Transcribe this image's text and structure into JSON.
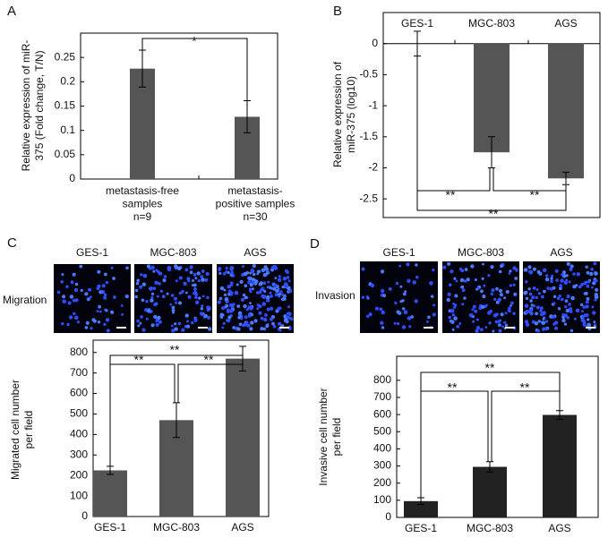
{
  "chart_data": [
    {
      "type": "bar",
      "label": "A",
      "ylabel": [
        "Relative expression of miR-",
        "375 (Fold change, T/N)"
      ],
      "categories": [
        [
          "metastasis-free",
          "samples",
          "n=9"
        ],
        [
          "metastasis-",
          "positive samples",
          "n=30"
        ]
      ],
      "values": [
        0.227,
        0.128
      ],
      "errors": [
        0.038,
        0.033
      ],
      "color": "#555555",
      "ylim": [
        0,
        0.3
      ],
      "yticks": [
        0,
        0.05,
        0.1,
        0.15,
        0.2,
        0.25
      ],
      "annotations": [
        "*"
      ]
    },
    {
      "type": "bar",
      "label": "B",
      "ylabel": [
        "Relative expression of",
        "miR-375 (log10)"
      ],
      "categories": [
        "GES-1",
        "MGC-803",
        "AGS"
      ],
      "values": [
        0,
        -1.75,
        -2.17
      ],
      "errors": [
        0.2,
        0.25,
        0.1
      ],
      "color": "#555555",
      "ylim": [
        -2.8,
        0.5
      ],
      "yticks": [
        0,
        -0.5,
        -1,
        -1.5,
        -2,
        -2.5
      ],
      "annotations": [
        "**",
        "**",
        "**"
      ]
    },
    {
      "type": "bar",
      "label": "C",
      "image_row_label": "Migration",
      "image_labels": [
        "GES-1",
        "MGC-803",
        "AGS"
      ],
      "ylabel": [
        "Migrated cell number",
        "per field"
      ],
      "categories": [
        "GES-1",
        "MGC-803",
        "AGS"
      ],
      "values": [
        225,
        470,
        770
      ],
      "errors": [
        20,
        85,
        60
      ],
      "color": "#555555",
      "ylim": [
        0,
        860
      ],
      "yticks": [
        0,
        100,
        200,
        300,
        400,
        500,
        600,
        700,
        800
      ],
      "annotations": [
        "**",
        "**",
        "**"
      ]
    },
    {
      "type": "bar",
      "label": "D",
      "image_row_label": "Invasion",
      "image_labels": [
        "GES-1",
        "MGC-803",
        "AGS"
      ],
      "ylabel": [
        "Invasive cell number",
        "per field"
      ],
      "categories": [
        "GES-1",
        "MGC-803",
        "AGS"
      ],
      "values": [
        95,
        295,
        598
      ],
      "errors": [
        20,
        30,
        25
      ],
      "color": "#222222",
      "ylim": [
        0,
        940
      ],
      "yticks": [
        0,
        100,
        200,
        300,
        400,
        500,
        600,
        700,
        800
      ],
      "annotations": [
        "**",
        "**",
        "**"
      ]
    }
  ]
}
